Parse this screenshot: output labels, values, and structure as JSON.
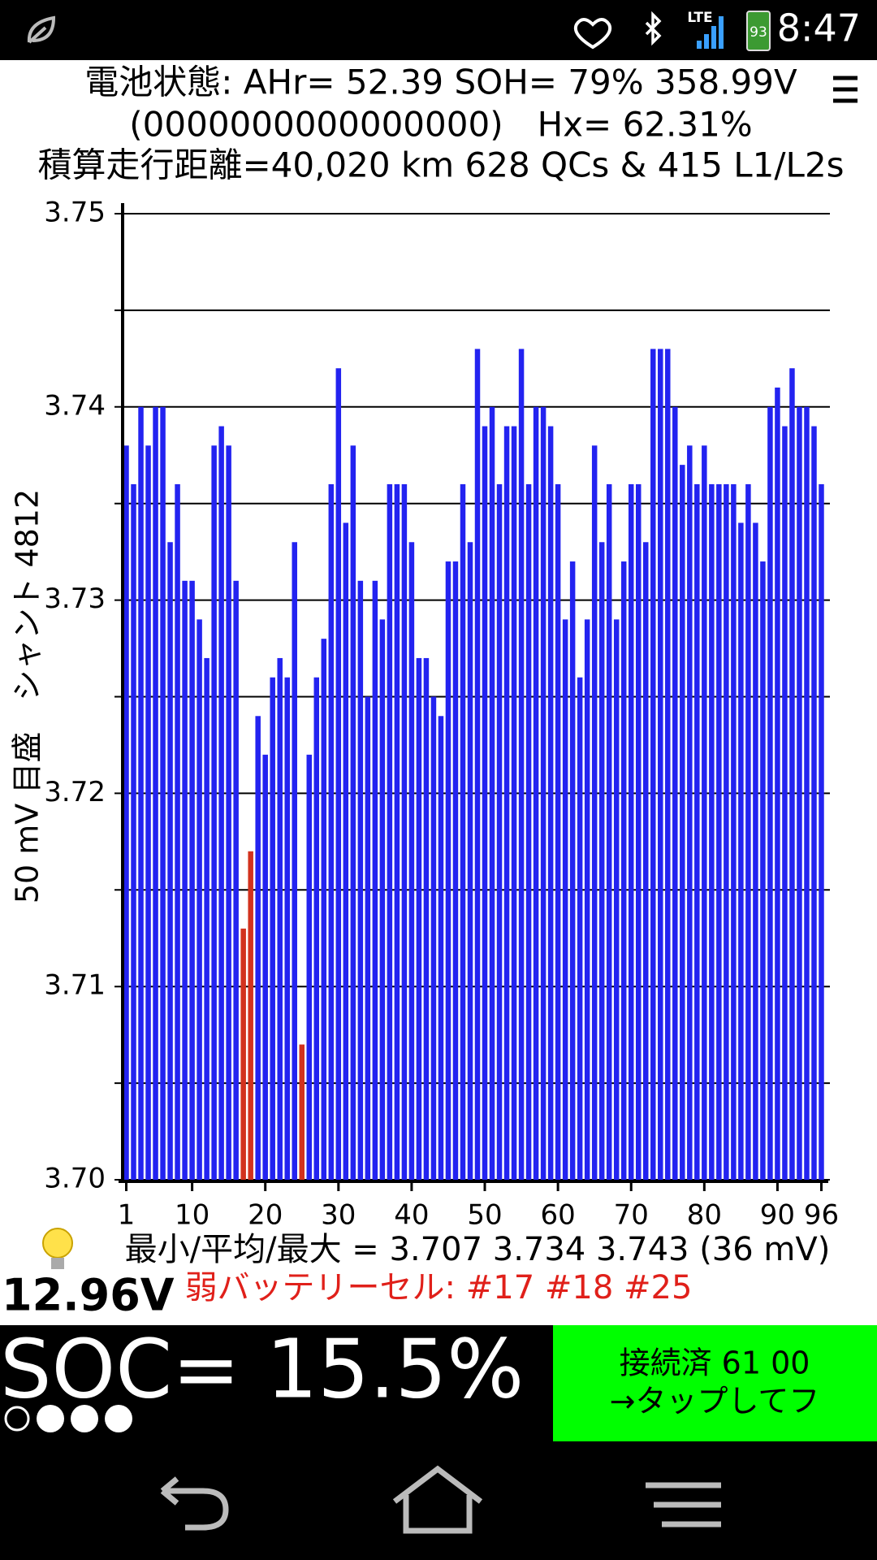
{
  "status_bar": {
    "network": "LTE",
    "battery": "93",
    "time": "8:47"
  },
  "header": {
    "lines": [
      "電池状態: AHr= 52.39 SOH= 79% 358.99V",
      "(0000000000000000)　Hx= 62.31%",
      "積算走行距離=40,020 km  628 QCs  &  415 L1/L2s"
    ]
  },
  "chart_data": {
    "type": "bar",
    "ylabel": "50 mV 目盛　シャント 4812",
    "x": [
      1,
      2,
      3,
      4,
      5,
      6,
      7,
      8,
      9,
      10,
      11,
      12,
      13,
      14,
      15,
      16,
      17,
      18,
      19,
      20,
      21,
      22,
      23,
      24,
      25,
      26,
      27,
      28,
      29,
      30,
      31,
      32,
      33,
      34,
      35,
      36,
      37,
      38,
      39,
      40,
      41,
      42,
      43,
      44,
      45,
      46,
      47,
      48,
      49,
      50,
      51,
      52,
      53,
      54,
      55,
      56,
      57,
      58,
      59,
      60,
      61,
      62,
      63,
      64,
      65,
      66,
      67,
      68,
      69,
      70,
      71,
      72,
      73,
      74,
      75,
      76,
      77,
      78,
      79,
      80,
      81,
      82,
      83,
      84,
      85,
      86,
      87,
      88,
      89,
      90,
      91,
      92,
      93,
      94,
      95,
      96
    ],
    "values": [
      3.738,
      3.736,
      3.74,
      3.738,
      3.74,
      3.74,
      3.733,
      3.736,
      3.731,
      3.731,
      3.729,
      3.727,
      3.738,
      3.739,
      3.738,
      3.731,
      3.713,
      3.717,
      3.724,
      3.722,
      3.726,
      3.727,
      3.726,
      3.733,
      3.707,
      3.722,
      3.726,
      3.728,
      3.736,
      3.742,
      3.734,
      3.738,
      3.731,
      3.725,
      3.731,
      3.729,
      3.736,
      3.736,
      3.736,
      3.733,
      3.727,
      3.727,
      3.725,
      3.724,
      3.732,
      3.732,
      3.736,
      3.733,
      3.743,
      3.739,
      3.74,
      3.736,
      3.739,
      3.739,
      3.743,
      3.736,
      3.74,
      3.74,
      3.739,
      3.736,
      3.729,
      3.732,
      3.726,
      3.729,
      3.738,
      3.733,
      3.736,
      3.729,
      3.732,
      3.736,
      3.736,
      3.733,
      3.743,
      3.743,
      3.743,
      3.74,
      3.737,
      3.738,
      3.736,
      3.738,
      3.736,
      3.736,
      3.736,
      3.736,
      3.734,
      3.736,
      3.734,
      3.732,
      3.74,
      3.741,
      3.739,
      3.742,
      3.74,
      3.74,
      3.739,
      3.736
    ],
    "color": "#2323f0",
    "highlight_color": "#d2321e",
    "highlighted": [
      17,
      18,
      25
    ],
    "xlim": [
      0.5,
      96.5
    ],
    "xticks": [
      1,
      10,
      20,
      30,
      40,
      50,
      60,
      70,
      80,
      90,
      96
    ],
    "ylim": [
      3.7,
      3.75
    ],
    "yticks": [
      {
        "value": 3.7,
        "label": "3.70"
      },
      {
        "value": 3.71,
        "label": "3.71"
      },
      {
        "value": 3.72,
        "label": "3.72"
      },
      {
        "value": 3.73,
        "label": "3.73"
      },
      {
        "value": 3.74,
        "label": "3.74"
      },
      {
        "value": 3.75,
        "label": "3.75"
      }
    ],
    "y_minor_grid": [
      3.705,
      3.715,
      3.725,
      3.735,
      3.745
    ],
    "grid": true
  },
  "stats": {
    "summary": "最小/平均/最大 = 3.707 3.734 3.743  (36 mV)",
    "weak_cells": "弱バッテリーセル:  #17 #18 #25"
  },
  "aux_voltage": "12.96V",
  "soc": "SOC= 15.5%",
  "button": {
    "line1": "接続済 61 00",
    "line2": "→タップしてフ"
  }
}
